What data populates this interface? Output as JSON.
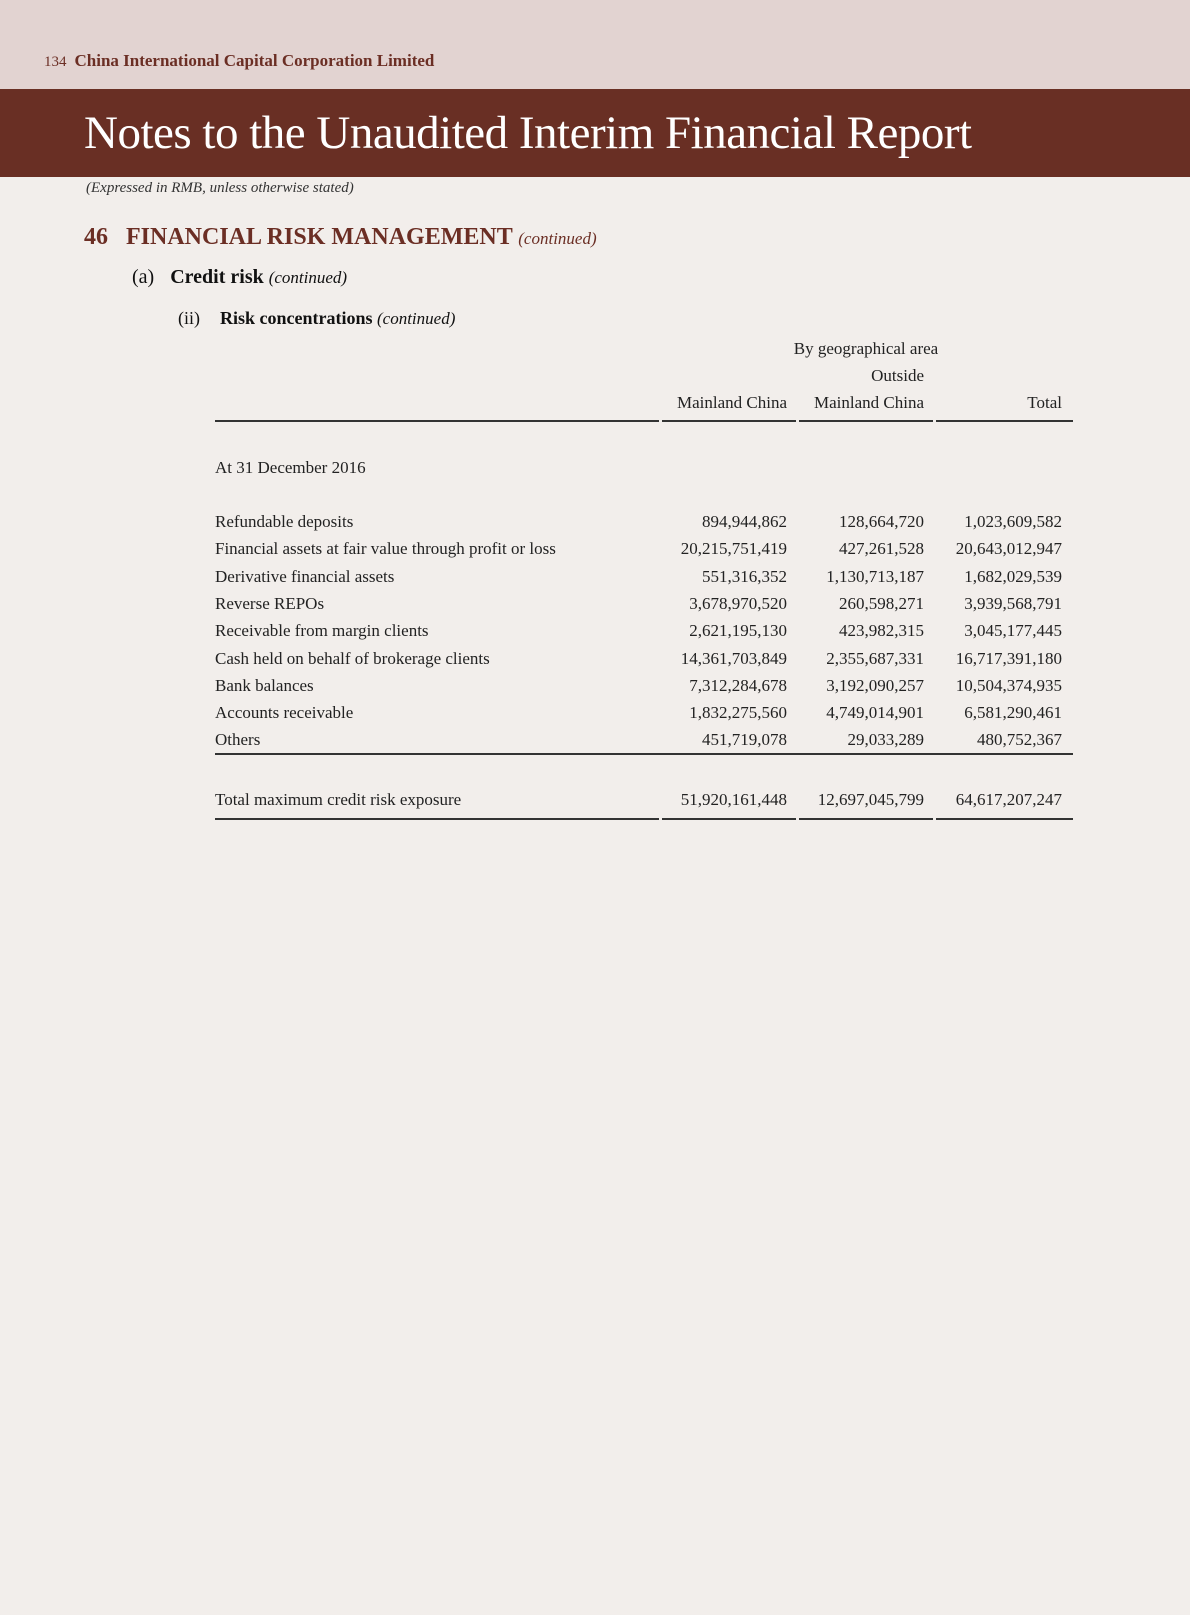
{
  "header": {
    "page_number": "134",
    "company": "China International Capital Corporation Limited",
    "title": "Notes to the Unaudited Interim Financial Report",
    "expressed": "(Expressed in RMB, unless otherwise stated)"
  },
  "section": {
    "number": "46",
    "title": "FINANCIAL RISK MANAGEMENT",
    "continued": "(continued)",
    "sub": {
      "number": "(a)",
      "title": "Credit risk",
      "continued": "(continued)"
    },
    "subsub": {
      "number": "(ii)",
      "title": "Risk concentrations",
      "continued": "(continued)"
    }
  },
  "colors": {
    "brand": "#692f24",
    "top_band": "#e2d3d1",
    "page": "#f2eeeb"
  },
  "table": {
    "group_header": "By geographical area",
    "columns": [
      "Mainland China",
      "Outside Mainland China",
      "Total"
    ],
    "col2_line1": "Outside",
    "col2_line2": "Mainland China",
    "period": "At 31 December 2016",
    "rows": [
      {
        "label": "Refundable deposits",
        "values": [
          "894,944,862",
          "128,664,720",
          "1,023,609,582"
        ]
      },
      {
        "label": "Financial assets at fair value through profit or loss",
        "values": [
          "20,215,751,419",
          "427,261,528",
          "20,643,012,947"
        ]
      },
      {
        "label": "Derivative financial assets",
        "values": [
          "551,316,352",
          "1,130,713,187",
          "1,682,029,539"
        ]
      },
      {
        "label": "Reverse REPOs",
        "values": [
          "3,678,970,520",
          "260,598,271",
          "3,939,568,791"
        ]
      },
      {
        "label": "Receivable from margin clients",
        "values": [
          "2,621,195,130",
          "423,982,315",
          "3,045,177,445"
        ]
      },
      {
        "label": "Cash held on behalf of brokerage clients",
        "values": [
          "14,361,703,849",
          "2,355,687,331",
          "16,717,391,180"
        ]
      },
      {
        "label": "Bank balances",
        "values": [
          "7,312,284,678",
          "3,192,090,257",
          "10,504,374,935"
        ]
      },
      {
        "label": "Accounts receivable",
        "values": [
          "1,832,275,560",
          "4,749,014,901",
          "6,581,290,461"
        ]
      },
      {
        "label": "Others",
        "values": [
          "451,719,078",
          "29,033,289",
          "480,752,367"
        ]
      }
    ],
    "total": {
      "label": "Total maximum credit risk exposure",
      "values": [
        "51,920,161,448",
        "12,697,045,799",
        "64,617,207,247"
      ]
    }
  }
}
